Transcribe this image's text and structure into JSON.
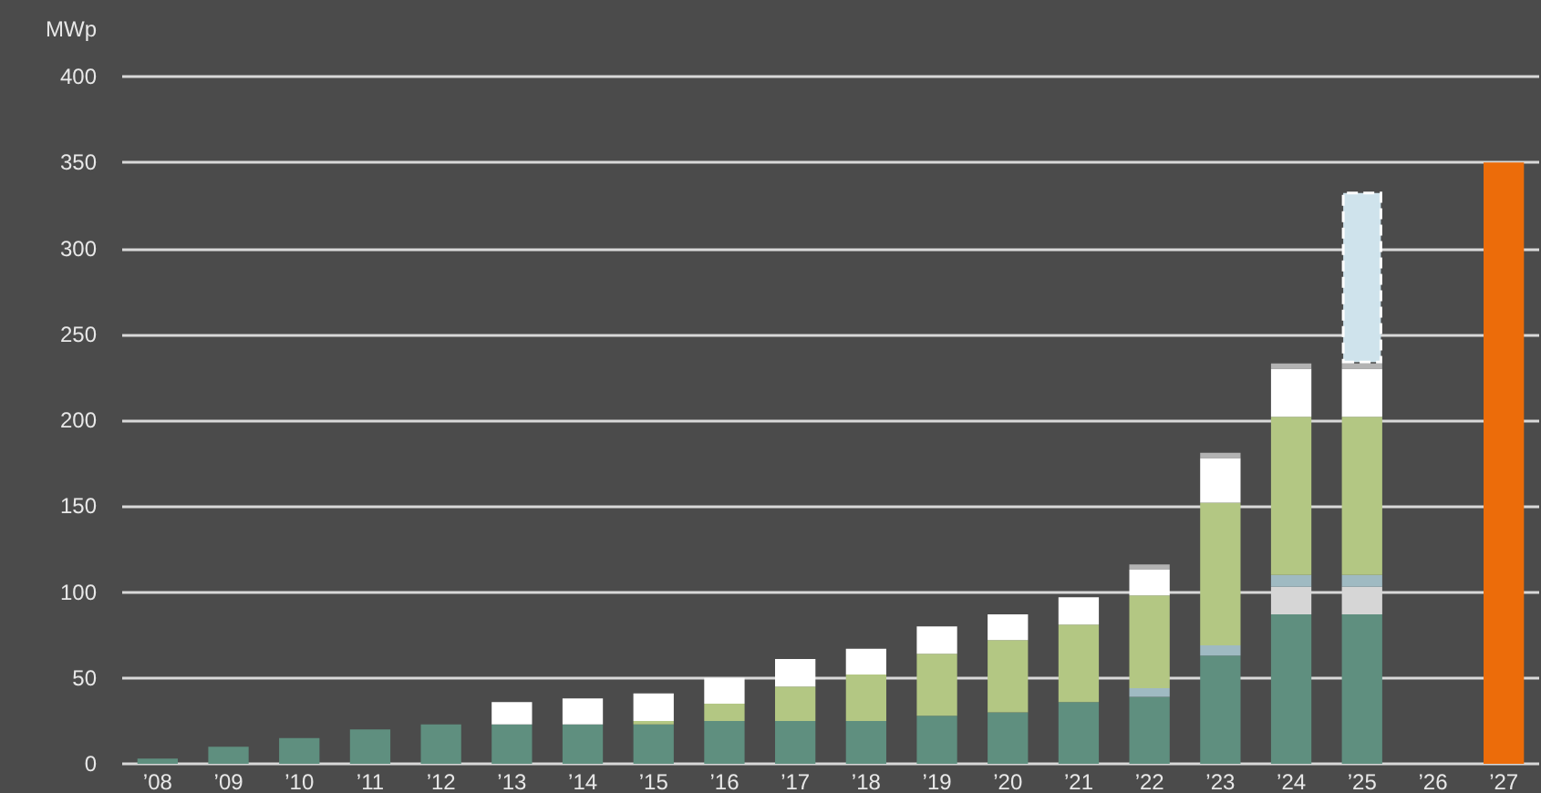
{
  "chart_data": {
    "type": "bar",
    "ylabel": "MWp",
    "stacked": true,
    "grid": "y",
    "categories": [
      "’08",
      "’09",
      "’10",
      "’11",
      "’12",
      "’13",
      "’14",
      "’15",
      "’16",
      "’17",
      "’18",
      "’19",
      "’20",
      "’21",
      "’22",
      "’23",
      "’24",
      "’25",
      "’26",
      "’27"
    ],
    "ylim": [
      0,
      400
    ],
    "yticks": [
      0,
      50,
      100,
      150,
      200,
      250,
      300,
      350,
      400
    ],
    "series": [
      {
        "color": "#5f8f7f",
        "values": [
          3,
          10,
          15,
          20,
          23,
          23,
          23,
          23,
          25,
          25,
          25,
          28,
          30,
          36,
          39,
          63,
          87,
          87,
          null,
          null
        ]
      },
      {
        "color": "#d6d6d6",
        "values": [
          null,
          null,
          null,
          null,
          null,
          null,
          null,
          null,
          null,
          null,
          null,
          null,
          null,
          null,
          null,
          null,
          16,
          16,
          null,
          null
        ]
      },
      {
        "color": "#9fbac2",
        "values": [
          null,
          null,
          null,
          null,
          null,
          null,
          null,
          null,
          null,
          null,
          null,
          null,
          null,
          null,
          5,
          6,
          7,
          7,
          null,
          null
        ]
      },
      {
        "color": "#b3c783",
        "values": [
          null,
          null,
          null,
          null,
          null,
          null,
          null,
          2,
          10,
          20,
          27,
          36,
          42,
          45,
          54,
          83,
          92,
          92,
          null,
          null
        ]
      },
      {
        "color": "#ffffff",
        "values": [
          null,
          null,
          null,
          null,
          null,
          13,
          15,
          16,
          15,
          16,
          15,
          16,
          15,
          16,
          15,
          26,
          28,
          28,
          null,
          null
        ]
      },
      {
        "color": "#b3b3b3",
        "values": [
          null,
          null,
          null,
          null,
          null,
          null,
          null,
          null,
          null,
          null,
          null,
          null,
          null,
          null,
          3,
          3,
          3,
          3,
          null,
          null
        ]
      },
      {
        "color": "#cfe3ec",
        "line_style": "dashed",
        "values": [
          null,
          null,
          null,
          null,
          null,
          null,
          null,
          null,
          null,
          null,
          null,
          null,
          null,
          null,
          null,
          null,
          null,
          100,
          null,
          null
        ]
      },
      {
        "color": "#ec6c0a",
        "values": [
          null,
          null,
          null,
          null,
          null,
          null,
          null,
          null,
          null,
          null,
          null,
          null,
          null,
          null,
          null,
          null,
          null,
          null,
          null,
          350
        ]
      }
    ]
  }
}
